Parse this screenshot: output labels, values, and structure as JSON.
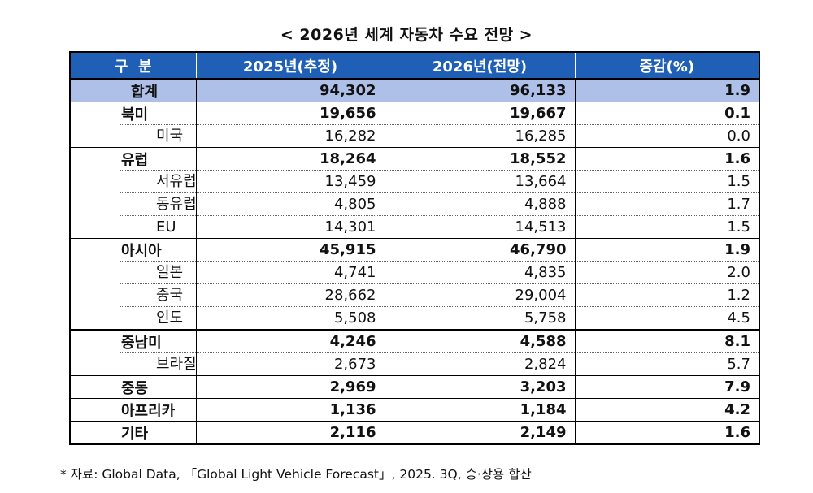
{
  "title": "< 2026년 세계 자동차 수요 전망 >",
  "table": {
    "headers": [
      "구  분",
      "2025년(추정)",
      "2026년(전망)",
      "증감(%)"
    ],
    "rows": [
      {
        "label": "합계",
        "v2025": "94,302",
        "v2026": "96,133",
        "change": "1.9",
        "type": "total"
      },
      {
        "label": "북미",
        "v2025": "19,656",
        "v2026": "19,667",
        "change": "0.1",
        "type": "region"
      },
      {
        "label": "미국",
        "v2025": "16,282",
        "v2026": "16,285",
        "change": "0.0",
        "type": "sub"
      },
      {
        "label": "유럽",
        "v2025": "18,264",
        "v2026": "18,552",
        "change": "1.6",
        "type": "region"
      },
      {
        "label": "서유럽",
        "v2025": "13,459",
        "v2026": "13,664",
        "change": "1.5",
        "type": "sub"
      },
      {
        "label": "동유럽",
        "v2025": "4,805",
        "v2026": "4,888",
        "change": "1.7",
        "type": "sub"
      },
      {
        "label": "EU",
        "v2025": "14,301",
        "v2026": "14,513",
        "change": "1.5",
        "type": "sub"
      },
      {
        "label": "아시아",
        "v2025": "45,915",
        "v2026": "46,790",
        "change": "1.9",
        "type": "region"
      },
      {
        "label": "일본",
        "v2025": "4,741",
        "v2026": "4,835",
        "change": "2.0",
        "type": "sub"
      },
      {
        "label": "중국",
        "v2025": "28,662",
        "v2026": "29,004",
        "change": "1.2",
        "type": "sub"
      },
      {
        "label": "인도",
        "v2025": "5,508",
        "v2026": "5,758",
        "change": "4.5",
        "type": "sub"
      },
      {
        "label": "중남미",
        "v2025": "4,246",
        "v2026": "4,588",
        "change": "8.1",
        "type": "region-heavy"
      },
      {
        "label": "브라질",
        "v2025": "2,673",
        "v2026": "2,824",
        "change": "5.7",
        "type": "sub"
      },
      {
        "label": "중동",
        "v2025": "2,969",
        "v2026": "3,203",
        "change": "7.9",
        "type": "region"
      },
      {
        "label": "아프리카",
        "v2025": "1,136",
        "v2026": "1,184",
        "change": "4.2",
        "type": "region"
      },
      {
        "label": "기타",
        "v2025": "2,116",
        "v2026": "2,149",
        "change": "1.6",
        "type": "region"
      }
    ]
  },
  "note": "* 자료: Global Data, 「Global Light Vehicle Forecast」, 2025. 3Q, 승·상용 합산",
  "colors": {
    "header_bg": "#1f5fb5",
    "total_bg": "#aebfe8"
  }
}
